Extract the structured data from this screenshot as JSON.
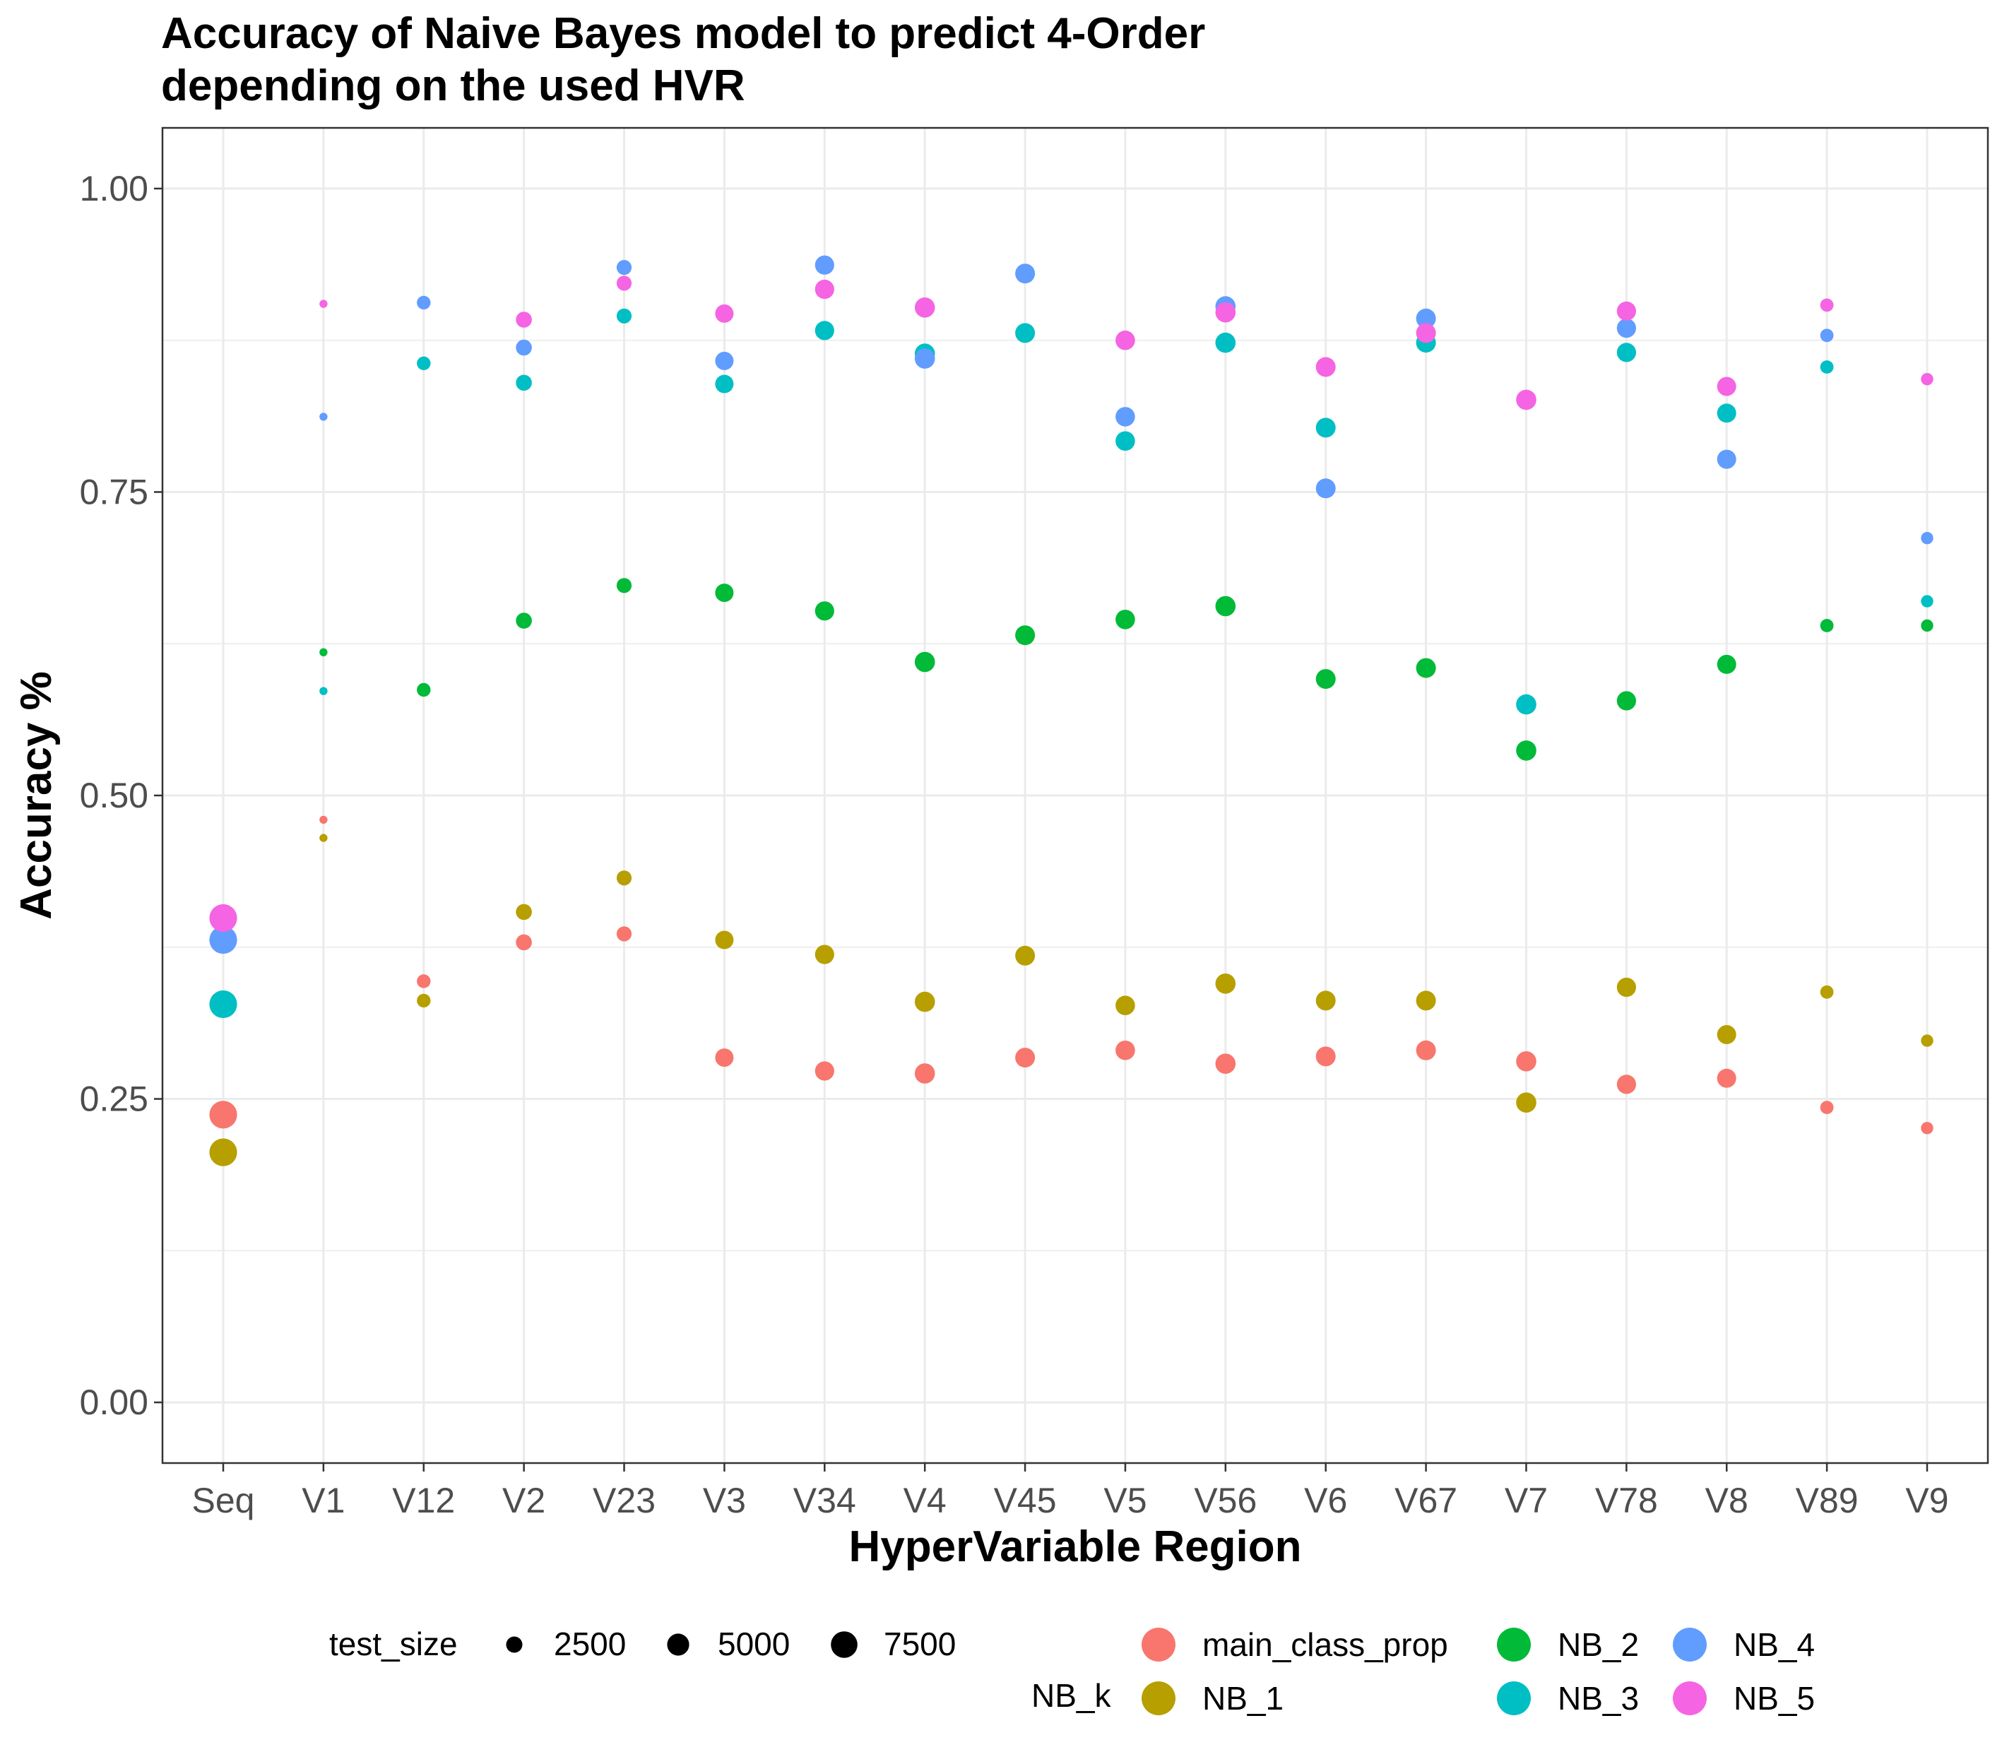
{
  "chart_data": {
    "type": "scatter",
    "title": "Accuracy of Naive Bayes model to predict 4-Order",
    "subtitle": "depending on the used HVR",
    "xlabel": "HyperVariable Region",
    "ylabel": "Accuracy %",
    "ylim": [
      -0.05,
      1.05
    ],
    "yticks": [
      "0.00",
      "0.25",
      "0.50",
      "0.75",
      "1.00"
    ],
    "grid": true,
    "legend_position": "bottom",
    "categories": [
      "Seq",
      "V1",
      "V12",
      "V2",
      "V23",
      "V3",
      "V34",
      "V4",
      "V45",
      "V5",
      "V56",
      "V6",
      "V67",
      "V7",
      "V78",
      "V8",
      "V89",
      "V9"
    ],
    "test_size": [
      8200,
      450,
      1700,
      2400,
      2100,
      3300,
      3700,
      4100,
      3900,
      3800,
      4100,
      3900,
      3900,
      4100,
      3700,
      3600,
      1600,
      1300
    ],
    "size_legend": {
      "title": "test_size",
      "entries": [
        {
          "label": "2500",
          "value": 2500
        },
        {
          "label": "5000",
          "value": 5000
        },
        {
          "label": "7500",
          "value": 7500
        }
      ]
    },
    "color_legend": {
      "title": "NB_k",
      "entries": [
        {
          "label": "main_class_prop",
          "color": "#F8766D"
        },
        {
          "label": "NB_1",
          "color": "#B79F00"
        },
        {
          "label": "NB_2",
          "color": "#00BA38"
        },
        {
          "label": "NB_3",
          "color": "#00BFC4"
        },
        {
          "label": "NB_4",
          "color": "#619CFF"
        },
        {
          "label": "NB_5",
          "color": "#F564E3"
        }
      ]
    },
    "series": [
      {
        "name": "main_class_prop",
        "color": "#F8766D",
        "values": [
          0.237,
          0.48,
          0.347,
          0.379,
          0.386,
          0.284,
          0.273,
          0.271,
          0.284,
          0.29,
          0.279,
          0.285,
          0.29,
          0.281,
          0.262,
          0.267,
          0.243,
          0.226
        ]
      },
      {
        "name": "NB_1",
        "color": "#B79F00",
        "values": [
          0.206,
          0.465,
          0.331,
          0.404,
          0.432,
          0.381,
          0.369,
          0.33,
          0.368,
          0.327,
          0.345,
          0.331,
          0.331,
          0.247,
          0.342,
          0.303,
          0.338,
          0.298
        ]
      },
      {
        "name": "NB_2",
        "color": "#00BA38",
        "values": [
          null,
          0.618,
          0.587,
          0.644,
          0.673,
          0.667,
          0.652,
          0.61,
          0.632,
          0.645,
          0.656,
          0.596,
          0.605,
          0.537,
          0.578,
          0.608,
          0.64,
          0.64
        ]
      },
      {
        "name": "NB_3",
        "color": "#00BFC4",
        "values": [
          0.328,
          0.586,
          0.856,
          0.84,
          0.895,
          0.839,
          0.883,
          0.864,
          0.881,
          0.792,
          0.873,
          0.803,
          0.873,
          0.575,
          0.865,
          0.815,
          0.853,
          0.66
        ]
      },
      {
        "name": "NB_4",
        "color": "#619CFF",
        "values": [
          0.381,
          0.812,
          0.906,
          0.869,
          0.935,
          0.858,
          0.937,
          0.86,
          0.93,
          0.812,
          0.903,
          0.753,
          0.893,
          null,
          0.885,
          0.777,
          0.879,
          0.712
        ]
      },
      {
        "name": "NB_5",
        "color": "#F564E3",
        "values": [
          0.399,
          0.905,
          null,
          0.892,
          0.922,
          0.897,
          0.917,
          0.902,
          null,
          0.875,
          0.898,
          0.853,
          0.881,
          0.826,
          0.899,
          0.837,
          0.904,
          0.843
        ]
      }
    ]
  }
}
